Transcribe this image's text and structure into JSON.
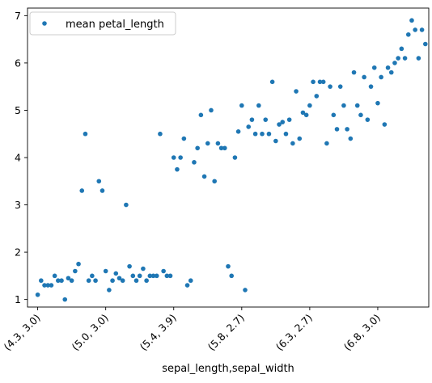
{
  "chart_data": {
    "type": "scatter",
    "xlabel": "sepal_length,sepal_width",
    "ylabel": "",
    "title": "",
    "ylim": [
      0.84,
      7.16
    ],
    "xlim": [
      -3,
      115
    ],
    "x_tick_positions": [
      0,
      20,
      40,
      60,
      80,
      100,
      120
    ],
    "x_tick_labels": [
      "(4.3, 3.0)",
      "(5.0, 3.0)",
      "(5.4, 3.9)",
      "(5.8, 2.7)",
      "(6.3, 2.7)",
      "(6.8, 3.0)",
      ""
    ],
    "y_ticks": [
      1,
      2,
      3,
      4,
      5,
      6,
      7
    ],
    "legend": {
      "position": "top-left",
      "entries": [
        "mean petal_length"
      ]
    },
    "marker_color": "#1f77b4",
    "series": [
      {
        "name": "mean petal_length",
        "x": [
          0,
          1,
          2,
          3,
          4,
          5,
          6,
          7,
          8,
          9,
          10,
          11,
          12,
          13,
          14,
          15,
          16,
          17,
          18,
          19,
          20,
          21,
          22,
          23,
          24,
          25,
          26,
          27,
          28,
          29,
          30,
          31,
          32,
          33,
          34,
          35,
          36,
          37,
          38,
          39,
          40,
          41,
          42,
          43,
          44,
          45,
          46,
          47,
          48,
          49,
          50,
          51,
          52,
          53,
          54,
          55,
          56,
          57,
          58,
          59,
          60,
          61,
          62,
          63,
          64,
          65,
          66,
          67,
          68,
          69,
          70,
          71,
          72,
          73,
          74,
          75,
          76,
          77,
          78,
          79,
          80,
          81,
          82,
          83,
          84,
          85,
          86,
          87,
          88,
          89,
          90,
          91,
          92,
          93,
          94,
          95,
          96,
          97,
          98,
          99,
          100,
          101,
          102,
          103,
          104,
          105,
          106,
          107,
          108,
          109,
          110,
          111,
          112,
          113,
          114
        ],
        "y": [
          1.1,
          1.4,
          1.3,
          1.3,
          1.3,
          1.5,
          1.4,
          1.4,
          1.0,
          1.45,
          1.4,
          1.6,
          1.75,
          3.3,
          4.5,
          1.4,
          1.5,
          1.4,
          3.5,
          3.3,
          1.6,
          1.2,
          1.4,
          1.55,
          1.45,
          1.4,
          3.0,
          1.7,
          1.5,
          1.4,
          1.5,
          1.65,
          1.4,
          1.5,
          1.5,
          1.5,
          4.5,
          1.6,
          1.5,
          1.5,
          4.0,
          3.75,
          4.0,
          4.4,
          1.3,
          1.4,
          3.9,
          4.2,
          4.9,
          3.6,
          4.3,
          5.0,
          3.5,
          4.3,
          4.2,
          4.2,
          1.7,
          1.5,
          4.0,
          4.55,
          5.1,
          1.2,
          4.65,
          4.8,
          4.5,
          5.1,
          4.5,
          4.8,
          4.5,
          5.6,
          4.35,
          4.7,
          4.75,
          4.5,
          4.8,
          4.3,
          5.4,
          4.4,
          4.95,
          4.9,
          5.1,
          5.6,
          5.3,
          5.6,
          5.6,
          4.3,
          5.5,
          4.9,
          4.6,
          5.5,
          5.1,
          4.6,
          4.4,
          5.8,
          5.1,
          4.9,
          5.7,
          4.8,
          5.5,
          5.9,
          5.15,
          5.7,
          4.7,
          5.9,
          5.8,
          6.0,
          6.1,
          6.3,
          6.1,
          6.6,
          6.9,
          6.7,
          6.1,
          6.7,
          6.4
        ]
      }
    ]
  }
}
